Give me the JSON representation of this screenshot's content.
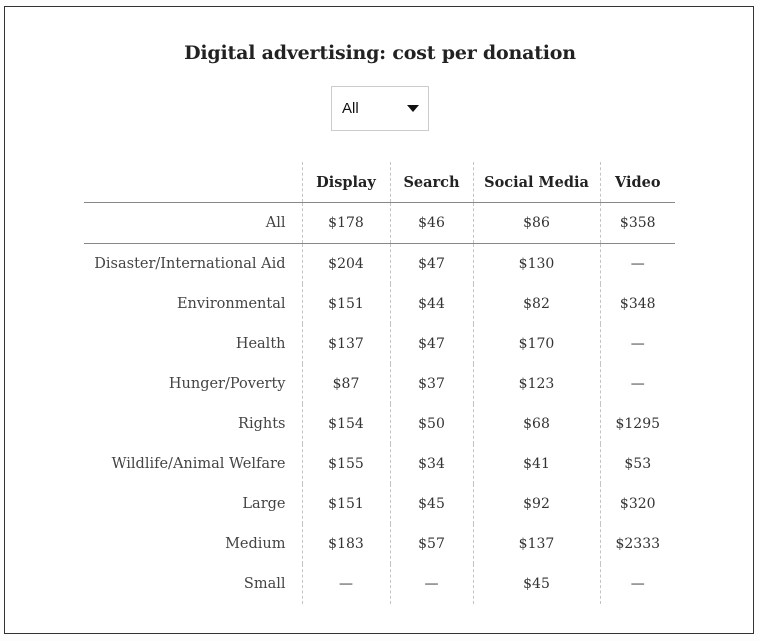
{
  "chart_data": {
    "type": "table",
    "title": "Digital advertising: cost per donation",
    "filter": {
      "selected": "All"
    },
    "columns": [
      "Display",
      "Search",
      "Social Media",
      "Video"
    ],
    "rows": [
      {
        "label": "All",
        "values": [
          "$178",
          "$46",
          "$86",
          "$358"
        ]
      },
      {
        "label": "Disaster/International Aid",
        "values": [
          "$204",
          "$47",
          "$130",
          "—"
        ]
      },
      {
        "label": "Environmental",
        "values": [
          "$151",
          "$44",
          "$82",
          "$348"
        ]
      },
      {
        "label": "Health",
        "values": [
          "$137",
          "$47",
          "$170",
          "—"
        ]
      },
      {
        "label": "Hunger/Poverty",
        "values": [
          "$87",
          "$37",
          "$123",
          "—"
        ]
      },
      {
        "label": "Rights",
        "values": [
          "$154",
          "$50",
          "$68",
          "$1295"
        ]
      },
      {
        "label": "Wildlife/Animal Welfare",
        "values": [
          "$155",
          "$34",
          "$41",
          "$53"
        ]
      },
      {
        "label": "Large",
        "values": [
          "$151",
          "$45",
          "$92",
          "$320"
        ]
      },
      {
        "label": "Medium",
        "values": [
          "$183",
          "$57",
          "$137",
          "$2333"
        ]
      },
      {
        "label": "Small",
        "values": [
          "—",
          "—",
          "$45",
          "—"
        ]
      }
    ]
  }
}
